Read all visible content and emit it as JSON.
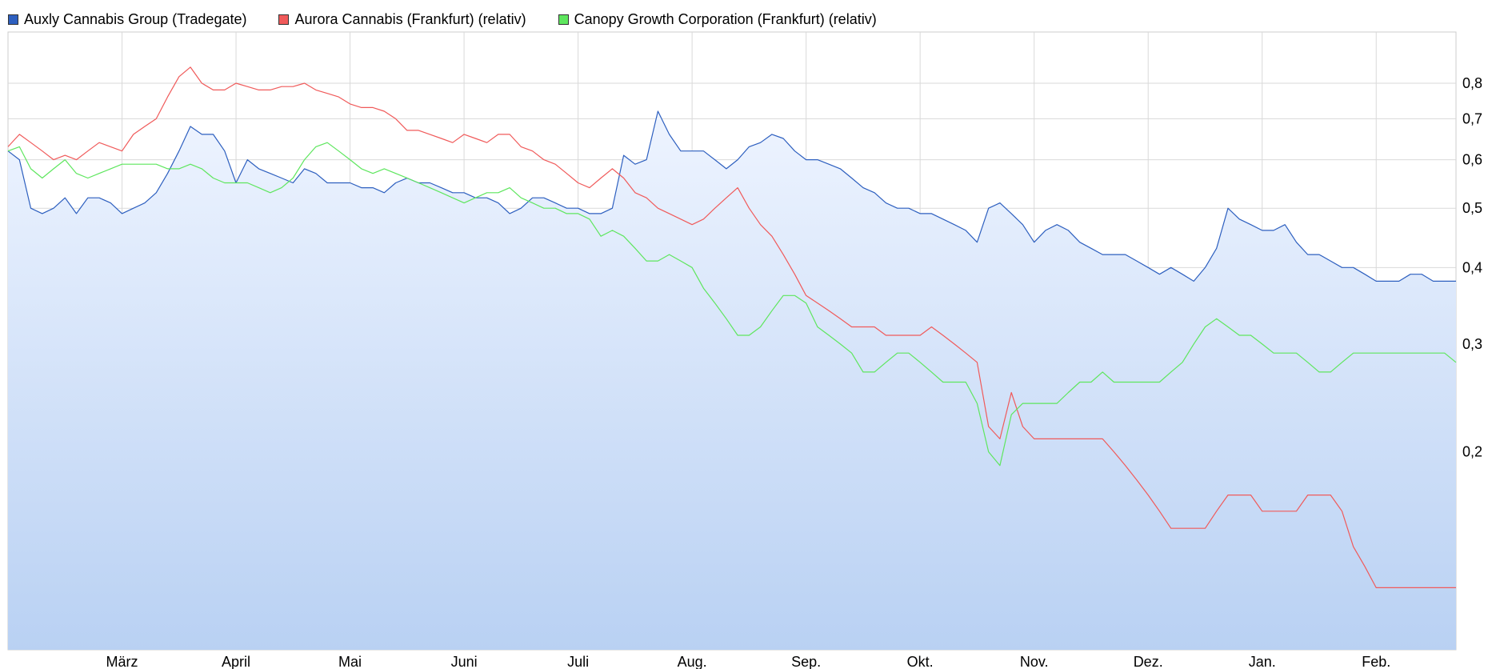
{
  "chart_data": {
    "type": "line",
    "title": "",
    "xlabel": "",
    "ylabel": "",
    "yscale": "log",
    "ylim": [
      0.095,
      0.97
    ],
    "x_months": [
      "März",
      "April",
      "Mai",
      "Juni",
      "Juli",
      "Aug.",
      "Sep.",
      "Okt.",
      "Nov.",
      "Dez.",
      "Jan.",
      "Feb."
    ],
    "x_range": [
      0,
      12.7
    ],
    "month_positions": [
      1.0,
      2.0,
      3.0,
      4.0,
      5.0,
      6.0,
      7.0,
      8.0,
      9.0,
      10.0,
      11.0,
      12.0
    ],
    "y_ticks": [
      {
        "value": 0.2,
        "label": "0,2"
      },
      {
        "value": 0.3,
        "label": "0,3"
      },
      {
        "value": 0.4,
        "label": "0,4"
      },
      {
        "value": 0.5,
        "label": "0,5"
      },
      {
        "value": 0.6,
        "label": "0,6"
      },
      {
        "value": 0.7,
        "label": "0,7"
      },
      {
        "value": 0.8,
        "label": "0,8"
      }
    ],
    "grid": true,
    "legend_position": "top-left",
    "series": [
      {
        "name": "Auxly Cannabis Group (Tradegate)",
        "color": "#2d5fbf",
        "fill": true,
        "x": [
          0.0,
          0.1,
          0.2,
          0.3,
          0.4,
          0.5,
          0.6,
          0.7,
          0.8,
          0.9,
          1.0,
          1.1,
          1.2,
          1.3,
          1.4,
          1.5,
          1.6,
          1.7,
          1.8,
          1.9,
          2.0,
          2.1,
          2.2,
          2.3,
          2.4,
          2.5,
          2.6,
          2.7,
          2.8,
          2.9,
          3.0,
          3.1,
          3.2,
          3.3,
          3.4,
          3.5,
          3.6,
          3.7,
          3.8,
          3.9,
          4.0,
          4.1,
          4.2,
          4.3,
          4.4,
          4.5,
          4.6,
          4.7,
          4.8,
          4.9,
          5.0,
          5.1,
          5.2,
          5.3,
          5.4,
          5.5,
          5.6,
          5.7,
          5.8,
          5.9,
          6.0,
          6.1,
          6.2,
          6.3,
          6.4,
          6.5,
          6.6,
          6.7,
          6.8,
          6.9,
          7.0,
          7.1,
          7.2,
          7.3,
          7.4,
          7.5,
          7.6,
          7.7,
          7.8,
          7.9,
          8.0,
          8.1,
          8.2,
          8.3,
          8.4,
          8.5,
          8.6,
          8.7,
          8.8,
          8.9,
          9.0,
          9.1,
          9.2,
          9.3,
          9.4,
          9.5,
          9.6,
          9.7,
          9.8,
          9.9,
          10.0,
          10.1,
          10.2,
          10.3,
          10.4,
          10.5,
          10.6,
          10.7,
          10.8,
          10.9,
          11.0,
          11.1,
          11.2,
          11.3,
          11.4,
          11.5,
          11.6,
          11.7,
          11.8,
          11.9,
          12.0,
          12.1,
          12.2,
          12.3,
          12.4,
          12.5,
          12.6,
          12.7
        ],
        "values": [
          0.62,
          0.6,
          0.5,
          0.49,
          0.5,
          0.52,
          0.49,
          0.52,
          0.52,
          0.51,
          0.49,
          0.5,
          0.51,
          0.53,
          0.57,
          0.62,
          0.68,
          0.66,
          0.66,
          0.62,
          0.55,
          0.6,
          0.58,
          0.57,
          0.56,
          0.55,
          0.58,
          0.57,
          0.55,
          0.55,
          0.55,
          0.54,
          0.54,
          0.53,
          0.55,
          0.56,
          0.55,
          0.55,
          0.54,
          0.53,
          0.53,
          0.52,
          0.52,
          0.51,
          0.49,
          0.5,
          0.52,
          0.52,
          0.51,
          0.5,
          0.5,
          0.49,
          0.49,
          0.5,
          0.61,
          0.59,
          0.6,
          0.72,
          0.66,
          0.62,
          0.62,
          0.62,
          0.6,
          0.58,
          0.6,
          0.63,
          0.64,
          0.66,
          0.65,
          0.62,
          0.6,
          0.6,
          0.59,
          0.58,
          0.56,
          0.54,
          0.53,
          0.51,
          0.5,
          0.5,
          0.49,
          0.49,
          0.48,
          0.47,
          0.46,
          0.44,
          0.5,
          0.51,
          0.49,
          0.47,
          0.44,
          0.46,
          0.47,
          0.46,
          0.44,
          0.43,
          0.42,
          0.42,
          0.42,
          0.41,
          0.4,
          0.39,
          0.4,
          0.39,
          0.38,
          0.4,
          0.43,
          0.5,
          0.48,
          0.47,
          0.46,
          0.46,
          0.47,
          0.44,
          0.42,
          0.42,
          0.41,
          0.4,
          0.4,
          0.39,
          0.38,
          0.38,
          0.38,
          0.39,
          0.39,
          0.38,
          0.38,
          0.38
        ]
      },
      {
        "name": "Aurora Cannabis (Frankfurt) (relativ)",
        "color": "#f05a5a",
        "fill": false,
        "x": [
          0.0,
          0.1,
          0.2,
          0.3,
          0.4,
          0.5,
          0.6,
          0.7,
          0.8,
          0.9,
          1.0,
          1.1,
          1.2,
          1.3,
          1.4,
          1.5,
          1.6,
          1.7,
          1.8,
          1.9,
          2.0,
          2.1,
          2.2,
          2.3,
          2.4,
          2.5,
          2.6,
          2.7,
          2.8,
          2.9,
          3.0,
          3.1,
          3.2,
          3.3,
          3.4,
          3.5,
          3.6,
          3.7,
          3.8,
          3.9,
          4.0,
          4.1,
          4.2,
          4.3,
          4.4,
          4.5,
          4.6,
          4.7,
          4.8,
          4.9,
          5.0,
          5.1,
          5.2,
          5.3,
          5.4,
          5.5,
          5.6,
          5.7,
          5.8,
          5.9,
          6.0,
          6.1,
          6.2,
          6.3,
          6.4,
          6.5,
          6.6,
          6.7,
          6.8,
          6.9,
          7.0,
          7.1,
          7.2,
          7.3,
          7.4,
          7.5,
          7.6,
          7.7,
          7.8,
          7.9,
          8.0,
          8.1,
          8.2,
          8.3,
          8.4,
          8.5,
          8.6,
          8.7,
          8.8,
          8.9,
          9.0,
          9.1,
          9.2,
          9.3,
          9.4,
          9.5,
          9.6,
          9.7,
          9.8,
          9.9,
          10.0,
          10.1,
          10.2,
          10.3,
          10.4,
          10.5,
          10.6,
          10.7,
          10.8,
          10.9,
          11.0,
          11.1,
          11.2,
          11.3,
          11.4,
          11.5,
          11.6,
          11.7,
          11.8,
          11.9,
          12.0,
          12.1,
          12.2,
          12.3,
          12.4,
          12.5,
          12.6,
          12.7
        ],
        "values": [
          0.63,
          0.66,
          0.64,
          0.62,
          0.6,
          0.61,
          0.6,
          0.62,
          0.64,
          0.63,
          0.62,
          0.66,
          0.68,
          0.7,
          0.76,
          0.82,
          0.85,
          0.8,
          0.78,
          0.78,
          0.8,
          0.79,
          0.78,
          0.78,
          0.79,
          0.79,
          0.8,
          0.78,
          0.77,
          0.76,
          0.74,
          0.73,
          0.73,
          0.72,
          0.7,
          0.67,
          0.67,
          0.66,
          0.65,
          0.64,
          0.66,
          0.65,
          0.64,
          0.66,
          0.66,
          0.63,
          0.62,
          0.6,
          0.59,
          0.57,
          0.55,
          0.54,
          0.56,
          0.58,
          0.56,
          0.53,
          0.52,
          0.5,
          0.49,
          0.48,
          0.47,
          0.48,
          0.5,
          0.52,
          0.54,
          0.5,
          0.47,
          0.45,
          0.42,
          0.39,
          0.36,
          0.35,
          0.34,
          0.33,
          0.32,
          0.32,
          0.32,
          0.31,
          0.31,
          0.31,
          0.31,
          0.32,
          0.31,
          0.3,
          0.29,
          0.28,
          0.22,
          0.21,
          0.25,
          0.22,
          0.21,
          0.21,
          0.21,
          0.21,
          0.21,
          0.21,
          0.21,
          0.2,
          0.19,
          0.18,
          0.17,
          0.16,
          0.15,
          0.15,
          0.15,
          0.15,
          0.16,
          0.17,
          0.17,
          0.17,
          0.16,
          0.16,
          0.16,
          0.16,
          0.17,
          0.17,
          0.17,
          0.16,
          0.14,
          0.13,
          0.12,
          0.12,
          0.12,
          0.12,
          0.12,
          0.12,
          0.12,
          0.12
        ]
      },
      {
        "name": "Canopy Growth Corporation (Frankfurt) (relativ)",
        "color": "#5ee65e",
        "fill": false,
        "x": [
          0.0,
          0.1,
          0.2,
          0.3,
          0.4,
          0.5,
          0.6,
          0.7,
          0.8,
          0.9,
          1.0,
          1.1,
          1.2,
          1.3,
          1.4,
          1.5,
          1.6,
          1.7,
          1.8,
          1.9,
          2.0,
          2.1,
          2.2,
          2.3,
          2.4,
          2.5,
          2.6,
          2.7,
          2.8,
          2.9,
          3.0,
          3.1,
          3.2,
          3.3,
          3.4,
          3.5,
          3.6,
          3.7,
          3.8,
          3.9,
          4.0,
          4.1,
          4.2,
          4.3,
          4.4,
          4.5,
          4.6,
          4.7,
          4.8,
          4.9,
          5.0,
          5.1,
          5.2,
          5.3,
          5.4,
          5.5,
          5.6,
          5.7,
          5.8,
          5.9,
          6.0,
          6.1,
          6.2,
          6.3,
          6.4,
          6.5,
          6.6,
          6.7,
          6.8,
          6.9,
          7.0,
          7.1,
          7.2,
          7.3,
          7.4,
          7.5,
          7.6,
          7.7,
          7.8,
          7.9,
          8.0,
          8.1,
          8.2,
          8.3,
          8.4,
          8.5,
          8.6,
          8.7,
          8.8,
          8.9,
          9.0,
          9.1,
          9.2,
          9.3,
          9.4,
          9.5,
          9.6,
          9.7,
          9.8,
          9.9,
          10.0,
          10.1,
          10.2,
          10.3,
          10.4,
          10.5,
          10.6,
          10.7,
          10.8,
          10.9,
          11.0,
          11.1,
          11.2,
          11.3,
          11.4,
          11.5,
          11.6,
          11.7,
          11.8,
          11.9,
          12.0,
          12.1,
          12.2,
          12.3,
          12.4,
          12.5,
          12.6,
          12.7
        ],
        "values": [
          0.62,
          0.63,
          0.58,
          0.56,
          0.58,
          0.6,
          0.57,
          0.56,
          0.57,
          0.58,
          0.59,
          0.59,
          0.59,
          0.59,
          0.58,
          0.58,
          0.59,
          0.58,
          0.56,
          0.55,
          0.55,
          0.55,
          0.54,
          0.53,
          0.54,
          0.56,
          0.6,
          0.63,
          0.64,
          0.62,
          0.6,
          0.58,
          0.57,
          0.58,
          0.57,
          0.56,
          0.55,
          0.54,
          0.53,
          0.52,
          0.51,
          0.52,
          0.53,
          0.53,
          0.54,
          0.52,
          0.51,
          0.5,
          0.5,
          0.49,
          0.49,
          0.48,
          0.45,
          0.46,
          0.45,
          0.43,
          0.41,
          0.41,
          0.42,
          0.41,
          0.4,
          0.37,
          0.35,
          0.33,
          0.31,
          0.31,
          0.32,
          0.34,
          0.36,
          0.36,
          0.35,
          0.32,
          0.31,
          0.3,
          0.29,
          0.27,
          0.27,
          0.28,
          0.29,
          0.29,
          0.28,
          0.27,
          0.26,
          0.26,
          0.26,
          0.24,
          0.2,
          0.19,
          0.23,
          0.24,
          0.24,
          0.24,
          0.24,
          0.25,
          0.26,
          0.26,
          0.27,
          0.26,
          0.26,
          0.26,
          0.26,
          0.26,
          0.27,
          0.28,
          0.3,
          0.32,
          0.33,
          0.32,
          0.31,
          0.31,
          0.3,
          0.29,
          0.29,
          0.29,
          0.28,
          0.27,
          0.27,
          0.28,
          0.29,
          0.29,
          0.29,
          0.29,
          0.29,
          0.29,
          0.29,
          0.29,
          0.29,
          0.28
        ]
      }
    ]
  }
}
